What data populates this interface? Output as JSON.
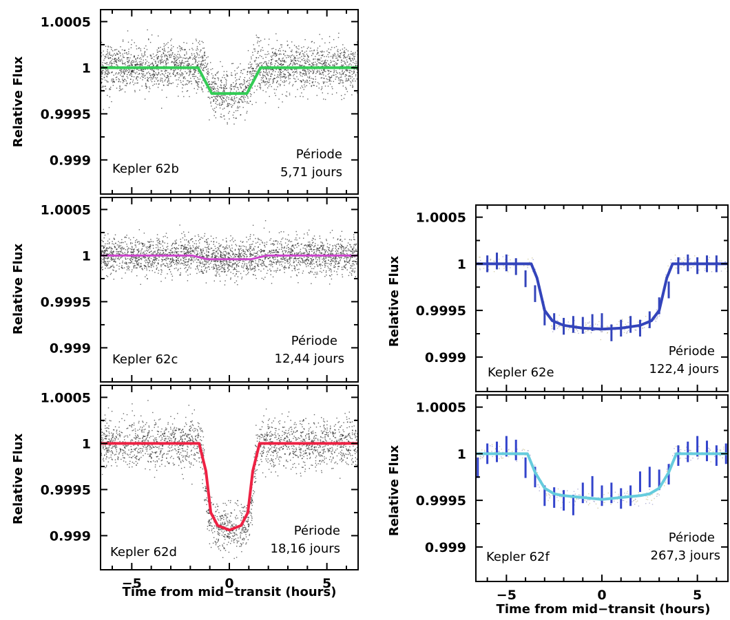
{
  "chart_data": [
    {
      "type": "scatter",
      "panel": "Kepler 62b",
      "label": "Kepler 62b",
      "period_label": "Période",
      "period_value": "5,71 jours",
      "ylabel": "Relative Flux",
      "xlabel": "",
      "xlim": [
        -6.6,
        6.6
      ],
      "ylim": [
        0.99863,
        1.00063
      ],
      "yticks": [
        0.999,
        0.9995,
        1,
        1.0005
      ],
      "ytick_labels": [
        "0.999",
        "0.9995",
        "1",
        "1.0005"
      ],
      "xticks": [
        -5,
        0,
        5
      ],
      "xtick_labels": [],
      "depth": 0.00028,
      "half_duration": 1.25,
      "ingress": 0.35,
      "scatter_sigma": 0.00013,
      "model_color": "#33cc55",
      "binned_color": "#3333aa",
      "series": [
        {
          "x": [
            -6.6,
            -1.6,
            -1.25,
            -0.9,
            0,
            0.9,
            1.25,
            1.6,
            6.6
          ],
          "y": [
            1.0,
            1.0,
            0.99986,
            0.99972,
            0.99972,
            0.99972,
            0.99986,
            1.0,
            1.0
          ]
        }
      ]
    },
    {
      "type": "scatter",
      "panel": "Kepler 62c",
      "label": "Kepler 62c",
      "period_label": "Période",
      "period_value": "12,44 jours",
      "ylabel": "Relative Flux",
      "xlabel": "",
      "xlim": [
        -6.6,
        6.6
      ],
      "ylim": [
        0.99863,
        1.00063
      ],
      "yticks": [
        0.999,
        0.9995,
        1,
        1.0005
      ],
      "ytick_labels": [
        "0.999",
        "0.9995",
        "1",
        "1.0005"
      ],
      "xticks": [
        -5,
        0,
        5
      ],
      "xtick_labels": [],
      "depth": 4e-05,
      "half_duration": 1.5,
      "ingress": 0.4,
      "scatter_sigma": 0.0001,
      "model_color": "#cc44cc",
      "binned_color": "#3333aa",
      "series": [
        {
          "x": [
            -6.6,
            -1.9,
            -1.1,
            0,
            1.1,
            1.9,
            6.6
          ],
          "y": [
            1.0,
            1.0,
            0.99996,
            0.99996,
            0.99996,
            1.0,
            1.0
          ]
        }
      ]
    },
    {
      "type": "scatter",
      "panel": "Kepler 62d",
      "label": "Kepler 62d",
      "period_label": "Période",
      "period_value": "18,16 jours",
      "xlabel": "Time from mid−transit (hours)",
      "ylabel": "Relative Flux",
      "xlim": [
        -6.6,
        6.6
      ],
      "ylim": [
        0.99863,
        1.00063
      ],
      "yticks": [
        0.999,
        0.9995,
        1,
        1.0005
      ],
      "ytick_labels": [
        "0.999",
        "0.9995",
        "1",
        "1.0005"
      ],
      "xticks": [
        -5,
        0,
        5
      ],
      "xtick_labels": [
        "−5",
        "0",
        "5"
      ],
      "depth": 0.00094,
      "half_duration": 1.55,
      "ingress": 0.6,
      "scatter_sigma": 0.00013,
      "model_color": "#ee2244",
      "binned_color": "#3333aa",
      "series": [
        {
          "x": [
            -6.6,
            -1.55,
            -1.2,
            -0.95,
            -0.6,
            0,
            0.6,
            0.95,
            1.2,
            1.55,
            6.6
          ],
          "y": [
            1.0,
            1.0,
            0.9997,
            0.99925,
            0.99911,
            0.99906,
            0.99911,
            0.99925,
            0.9997,
            1.0,
            1.0
          ]
        }
      ]
    },
    {
      "type": "scatter",
      "panel": "Kepler 62e",
      "label": "Kepler 62e",
      "period_label": "Période",
      "period_value": "122,4 jours",
      "ylabel": "Relative Flux",
      "xlabel": "",
      "xlim": [
        -6.6,
        6.6
      ],
      "ylim": [
        0.99863,
        1.00063
      ],
      "yticks": [
        0.999,
        0.9995,
        1,
        1.0005
      ],
      "ytick_labels": [
        "0.999",
        "0.9995",
        "1",
        "1.0005"
      ],
      "xticks": [
        -5,
        0,
        5
      ],
      "xtick_labels": [],
      "depth": 0.0007,
      "half_duration": 3.7,
      "ingress": 1.0,
      "model_color": "#3344bb",
      "binned_color": "#3344bb",
      "scatter_sigma": 4e-05,
      "series": [
        {
          "x": [
            -6.6,
            -3.7,
            -3.4,
            -3.0,
            -2.6,
            -2.0,
            -1.0,
            0,
            1.0,
            2.0,
            2.6,
            3.0,
            3.4,
            3.7,
            6.6
          ],
          "y": [
            1.0,
            1.0,
            0.99985,
            0.9995,
            0.99939,
            0.99934,
            0.99931,
            0.9993,
            0.99931,
            0.99934,
            0.99939,
            0.9995,
            0.99985,
            1.0,
            1.0
          ]
        }
      ],
      "binned": {
        "x": [
          -6.0,
          -5.5,
          -5.0,
          -4.5,
          -4.0,
          -3.5,
          -3.0,
          -2.5,
          -2.0,
          -1.5,
          -1.0,
          -0.5,
          0,
          0.5,
          1.0,
          1.5,
          2.0,
          2.5,
          3.0,
          3.5,
          4.0,
          4.5,
          5.0,
          5.5,
          6.0
        ],
        "y": [
          1.0,
          1.00003,
          1.00001,
          0.99997,
          0.99984,
          0.99968,
          0.99943,
          0.99938,
          0.99933,
          0.99935,
          0.99934,
          0.99937,
          0.99938,
          0.99926,
          0.99931,
          0.99935,
          0.99931,
          0.9994,
          0.99955,
          0.99972,
          0.99998,
          1.00001,
          0.99998,
          1.0,
          1.0
        ],
        "err": 9e-05
      }
    },
    {
      "type": "scatter",
      "panel": "Kepler 62f",
      "label": "Kepler 62f",
      "period_label": "Période",
      "period_value": "267,3 jours",
      "xlabel": "Time from mid−transit (hours)",
      "ylabel": "Relative Flux",
      "xlim": [
        -6.6,
        6.6
      ],
      "ylim": [
        0.99863,
        1.00063
      ],
      "yticks": [
        0.999,
        0.9995,
        1,
        1.0005
      ],
      "ytick_labels": [
        "0.999",
        "0.9995",
        "1",
        "1.0005"
      ],
      "xticks": [
        -5,
        0,
        5
      ],
      "xtick_labels": [
        "−5",
        "0",
        "5"
      ],
      "depth": 0.00049,
      "half_duration": 3.9,
      "ingress": 1.0,
      "model_color": "#66ccdd",
      "binned_color": "#3344cc",
      "scatter_sigma": 4e-05,
      "series": [
        {
          "x": [
            -6.6,
            -3.9,
            -3.5,
            -3.0,
            -2.5,
            -2.0,
            -1.0,
            0,
            1.0,
            2.0,
            2.5,
            3.0,
            3.5,
            3.9,
            6.6
          ],
          "y": [
            1.0,
            1.0,
            0.9998,
            0.99963,
            0.99957,
            0.99955,
            0.99953,
            0.99951,
            0.99953,
            0.99955,
            0.99957,
            0.99963,
            0.9998,
            1.0,
            1.0
          ]
        }
      ],
      "binned": {
        "x": [
          -6.5,
          -6.0,
          -5.5,
          -5.0,
          -4.5,
          -4.0,
          -3.5,
          -3.0,
          -2.5,
          -2.0,
          -1.5,
          -1.0,
          -0.5,
          0,
          0.5,
          1.0,
          1.5,
          2.0,
          2.5,
          3.0,
          3.5,
          4.0,
          4.5,
          5.0,
          5.5,
          6.0,
          6.5
        ],
        "y": [
          0.99985,
          1.0,
          1.00002,
          1.00008,
          1.00004,
          0.99985,
          0.99975,
          0.99955,
          0.99953,
          0.9995,
          0.99945,
          0.99958,
          0.99965,
          0.99955,
          0.99958,
          0.99952,
          0.99955,
          0.9997,
          0.99975,
          0.99972,
          0.99978,
          0.99998,
          1.00002,
          1.00008,
          1.00003,
          0.99998,
          1.0
        ],
        "err": 0.00011
      }
    }
  ]
}
